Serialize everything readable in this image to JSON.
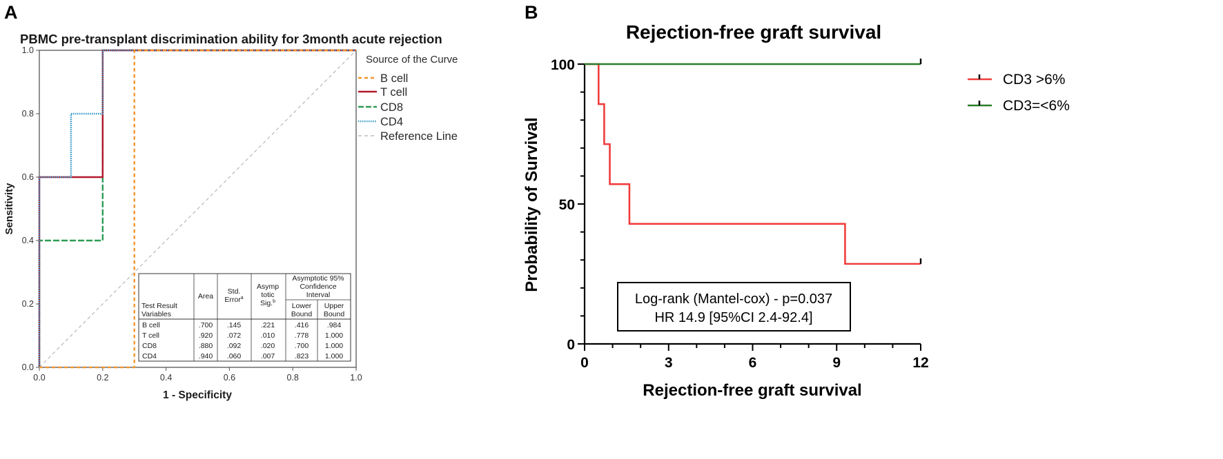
{
  "panels": {
    "a": {
      "letter": "A",
      "title": "PBMC pre-transplant discrimination ability for 3month acute rejection",
      "xlabel": "1 - Specificity",
      "ylabel": "Sensitivity",
      "legend_title": "Source of the Curve",
      "legend": [
        {
          "label": "B cell",
          "color": "#f0962e",
          "dash": "short-dash"
        },
        {
          "label": "T cell",
          "color": "#b2182b",
          "dash": "solid"
        },
        {
          "label": "CD8",
          "color": "#2e9b55",
          "dash": "long-dash"
        },
        {
          "label": "CD4",
          "color": "#3d9cc8",
          "dash": "dotted"
        },
        {
          "label": "Reference Line",
          "color": "#bdbdbd",
          "dash": "dash"
        }
      ],
      "table": {
        "header_row1": {
          "variables": "",
          "area": "Area",
          "std_error": "Std. Error",
          "std_error_sup": "a",
          "asymp_sig": "Asymp totic Sig.",
          "asymp_sig_sup": "b",
          "ci": "Asymptotic 95% Confidence Interval"
        },
        "header_row2": {
          "variables": "Test Result Variables",
          "lower": "Lower Bound",
          "upper": "Upper Bound"
        },
        "rows": [
          {
            "variable": "B cell",
            "area": ".700",
            "std_error": ".145",
            "sig": ".221",
            "lower": ".416",
            "upper": ".984"
          },
          {
            "variable": "T cell",
            "area": ".920",
            "std_error": ".072",
            "sig": ".010",
            "lower": ".778",
            "upper": "1.000"
          },
          {
            "variable": "CD8",
            "area": ".880",
            "std_error": ".092",
            "sig": ".020",
            "lower": ".700",
            "upper": "1.000"
          },
          {
            "variable": "CD4",
            "area": ".940",
            "std_error": ".060",
            "sig": ".007",
            "lower": ".823",
            "upper": "1.000"
          }
        ]
      }
    },
    "b": {
      "letter": "B",
      "title": "Rejection-free graft survival",
      "xlabel": "Rejection-free graft survival",
      "ylabel": "Probability of Survival",
      "legend": [
        {
          "label": "CD3 >6%",
          "color": "#f03c3c"
        },
        {
          "label": "CD3=<6%",
          "color": "#2a7d2a"
        }
      ],
      "annotation": {
        "line1": "Log-rank  (Mantel-cox) - p=0.037",
        "line2": "HR 14.9 [95%CI 2.4-92.4]"
      }
    }
  },
  "chart_data": [
    {
      "type": "line",
      "subtype": "roc",
      "title": "PBMC pre-transplant discrimination ability for 3month acute rejection",
      "xlabel": "1 - Specificity",
      "ylabel": "Sensitivity",
      "xlim": [
        0,
        1
      ],
      "ylim": [
        0,
        1
      ],
      "x_ticks": [
        "0.0",
        "0.2",
        "0.4",
        "0.6",
        "0.8",
        "1.0"
      ],
      "y_ticks": [
        "0.0",
        "0.2",
        "0.4",
        "0.6",
        "0.8",
        "1.0"
      ],
      "legend_position": "right",
      "series": [
        {
          "name": "B cell",
          "points": [
            [
              0,
              0
            ],
            [
              0.3,
              0
            ],
            [
              0.3,
              1.0
            ],
            [
              1.0,
              1.0
            ]
          ]
        },
        {
          "name": "T cell",
          "points": [
            [
              0,
              0
            ],
            [
              0,
              0.6
            ],
            [
              0.2,
              0.6
            ],
            [
              0.2,
              1.0
            ],
            [
              1.0,
              1.0
            ]
          ]
        },
        {
          "name": "CD8",
          "points": [
            [
              0,
              0
            ],
            [
              0,
              0.4
            ],
            [
              0.2,
              0.4
            ],
            [
              0.2,
              1.0
            ],
            [
              1.0,
              1.0
            ]
          ]
        },
        {
          "name": "CD4",
          "points": [
            [
              0,
              0
            ],
            [
              0,
              0.6
            ],
            [
              0.1,
              0.6
            ],
            [
              0.1,
              0.8
            ],
            [
              0.2,
              0.8
            ],
            [
              0.2,
              1.0
            ],
            [
              1.0,
              1.0
            ]
          ]
        },
        {
          "name": "Reference Line",
          "points": [
            [
              0,
              0
            ],
            [
              1,
              1
            ]
          ]
        }
      ]
    },
    {
      "type": "line",
      "subtype": "kaplan-meier",
      "title": "Rejection-free graft survival",
      "xlabel": "Rejection-free graft survival",
      "ylabel": "Probability of Survival",
      "xlim": [
        0,
        12
      ],
      "ylim": [
        0,
        100
      ],
      "x_ticks": [
        "0",
        "3",
        "6",
        "9",
        "12"
      ],
      "y_ticks": [
        "0",
        "50",
        "100"
      ],
      "legend_position": "top-right",
      "series": [
        {
          "name": "CD3 >6%",
          "steps": [
            [
              0,
              100
            ],
            [
              0.5,
              85.7
            ],
            [
              0.7,
              71.4
            ],
            [
              0.9,
              57.1
            ],
            [
              1.6,
              42.9
            ],
            [
              9.3,
              28.6
            ],
            [
              12,
              28.6
            ]
          ],
          "censor": [
            [
              12,
              28.6
            ]
          ]
        },
        {
          "name": "CD3=<6%",
          "steps": [
            [
              0,
              100
            ],
            [
              12,
              100
            ]
          ],
          "censor": [
            [
              12,
              100
            ]
          ]
        }
      ]
    }
  ]
}
